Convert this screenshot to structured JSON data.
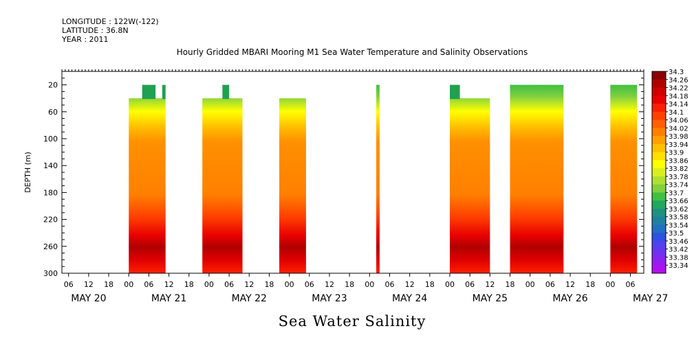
{
  "header": {
    "longitude": "LONGITUDE : 122W(-122)",
    "latitude": "LATITUDE : 36.8N",
    "year": "YEAR : 2011"
  },
  "chart_data": {
    "type": "heatmap",
    "title": "Hourly Gridded MBARI Mooring M1 Sea Water Temperature and Salinity Observations",
    "xlabel": "",
    "ylabel": "DEPTH (m)",
    "bottom_label": "Sea Water Salinity",
    "xlim": [
      "2011-05-20T04:00",
      "2011-05-27T10:00"
    ],
    "ylim": [
      300,
      0
    ],
    "y_reversed": true,
    "yticks": [
      20,
      60,
      100,
      140,
      180,
      220,
      260,
      300
    ],
    "hour_ticks": [
      "06",
      "12",
      "18",
      "00",
      "06",
      "12",
      "18",
      "00",
      "06",
      "12",
      "18",
      "00",
      "06",
      "12",
      "18",
      "00",
      "06",
      "12",
      "18",
      "00",
      "06",
      "12",
      "18",
      "00",
      "06",
      "12",
      "18",
      "00",
      "06"
    ],
    "date_labels": [
      "MAY 20",
      "MAY 21",
      "MAY 22",
      "MAY 23",
      "MAY 24",
      "MAY 25",
      "MAY 26",
      "MAY 27"
    ],
    "colorbar": {
      "labels": [
        "34.3",
        "34.26",
        "34.22",
        "34.18",
        "34.14",
        "34.1",
        "34.06",
        "34.02",
        "33.98",
        "33.94",
        "33.9",
        "33.86",
        "33.82",
        "33.78",
        "33.74",
        "33.7",
        "33.66",
        "33.62",
        "33.58",
        "33.54",
        "33.5",
        "33.46",
        "33.42",
        "33.38",
        "33.34"
      ],
      "colors": [
        "#8c0000",
        "#b00000",
        "#d00000",
        "#e80000",
        "#f82000",
        "#ff4000",
        "#ff6000",
        "#ff8000",
        "#ffa000",
        "#ffc000",
        "#ffe000",
        "#ffff00",
        "#d8f020",
        "#b0e030",
        "#80d040",
        "#40c040",
        "#20a860",
        "#209080",
        "#2080a0",
        "#2070c0",
        "#3050e0",
        "#5040f0",
        "#7030f0",
        "#9020f0",
        "#b010f0"
      ]
    },
    "profile": {
      "depth": [
        20,
        40,
        60,
        80,
        100,
        140,
        180,
        220,
        240,
        260,
        280,
        300
      ],
      "salinity": [
        33.74,
        33.78,
        33.86,
        33.96,
        34.04,
        34.1,
        34.11,
        34.16,
        34.22,
        34.26,
        34.18,
        34.16
      ]
    },
    "segments": [
      {
        "start": "2011-05-21T00:00",
        "end": "2011-05-21T11:00",
        "top_depth": 40,
        "peaks": [
          {
            "start": "2011-05-21T04:00",
            "end": "2011-05-21T08:00",
            "depth": 20
          },
          {
            "start": "2011-05-21T10:00",
            "end": "2011-05-21T11:00",
            "depth": 20
          }
        ]
      },
      {
        "start": "2011-05-21T22:00",
        "end": "2011-05-22T10:00",
        "top_depth": 40,
        "peaks": [
          {
            "start": "2011-05-22T04:00",
            "end": "2011-05-22T06:00",
            "depth": 20
          }
        ]
      },
      {
        "start": "2011-05-22T21:00",
        "end": "2011-05-23T05:00",
        "top_depth": 40,
        "peaks": []
      },
      {
        "start": "2011-05-24T02:00",
        "end": "2011-05-24T03:00",
        "top_depth": 20,
        "peaks": []
      },
      {
        "start": "2011-05-25T00:00",
        "end": "2011-05-25T12:00",
        "top_depth": 40,
        "peaks": [
          {
            "start": "2011-05-25T00:00",
            "end": "2011-05-25T03:00",
            "depth": 20
          }
        ]
      },
      {
        "start": "2011-05-25T18:00",
        "end": "2011-05-26T10:00",
        "top_depth": 20,
        "peaks": []
      },
      {
        "start": "2011-05-27T00:00",
        "end": "2011-05-27T08:00",
        "top_depth": 20,
        "peaks": []
      }
    ]
  }
}
